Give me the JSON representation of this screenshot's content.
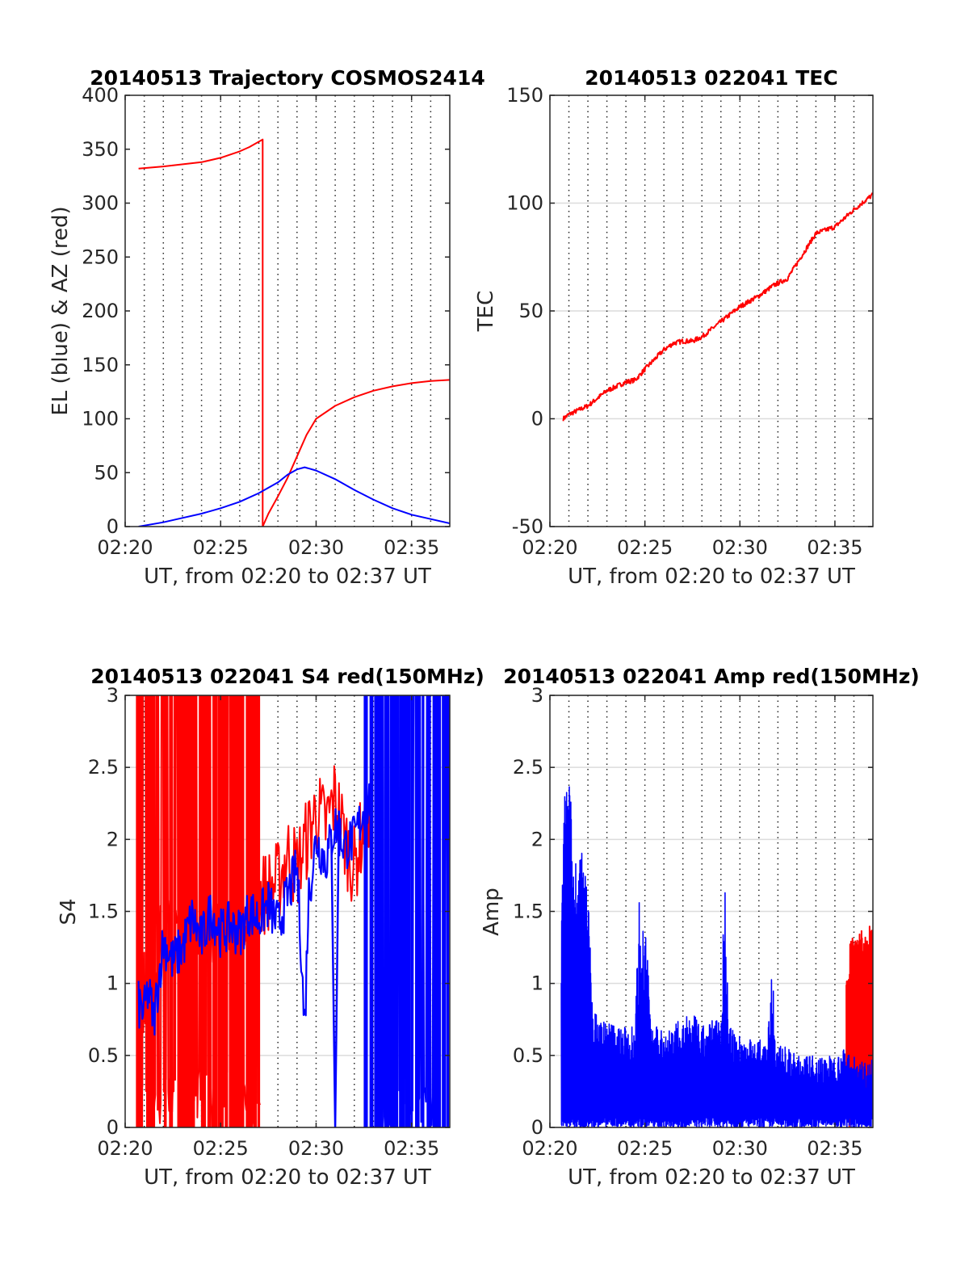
{
  "figure": {
    "x_ticks_minutes": [
      0,
      5,
      10,
      15
    ],
    "x_tick_labels": [
      "02:20",
      "02:25",
      "02:30",
      "02:35"
    ],
    "x_grid_minutes": [
      1,
      2,
      3,
      4,
      5,
      6,
      7,
      8,
      9,
      10,
      11,
      12,
      13,
      14,
      15,
      16
    ],
    "xlim_minutes": [
      0,
      17
    ],
    "colors": {
      "red": "#ff0000",
      "blue": "#0000ff",
      "grid": "#262626",
      "axes": "#262626"
    }
  },
  "chart_data": [
    {
      "id": "traj",
      "type": "line",
      "title": "20140513 Trajectory COSMOS2414",
      "xlabel": "UT, from 02:20 to 02:37 UT",
      "ylabel": "EL (blue) & AZ (red)",
      "ylim": [
        0,
        400
      ],
      "yticks": [
        0,
        50,
        100,
        150,
        200,
        250,
        300,
        350,
        400
      ],
      "ytick_labels": [
        "0",
        "50",
        "100",
        "150",
        "200",
        "250",
        "300",
        "350",
        "400"
      ],
      "grid": {
        "x": "dotted",
        "y": "none"
      },
      "series": [
        {
          "color": "#ff0000",
          "x": [
            0.7,
            2,
            4,
            5,
            6,
            6.5,
            7.2,
            7.2,
            7.5,
            8,
            8.5,
            9,
            9.5,
            10,
            11,
            12,
            13,
            14,
            15,
            16,
            17
          ],
          "y": [
            332,
            334,
            338,
            342,
            348,
            352,
            359,
            0,
            12,
            28,
            45,
            65,
            85,
            100,
            112,
            120,
            126,
            130,
            133,
            135,
            136
          ]
        },
        {
          "color": "#0000ff",
          "x": [
            0.7,
            2,
            3,
            4,
            5,
            6,
            7,
            8,
            8.5,
            9,
            9.4,
            10,
            11,
            12,
            13,
            14,
            15,
            16,
            17
          ],
          "y": [
            0,
            4,
            8,
            12,
            17,
            23,
            31,
            41,
            48,
            53,
            55,
            52,
            44,
            34,
            25,
            17,
            11,
            7,
            3
          ]
        }
      ]
    },
    {
      "id": "tec",
      "type": "line",
      "title": "20140513 022041 TEC",
      "xlabel": "UT, from 02:20 to 02:37 UT",
      "ylabel": "TEC",
      "ylim": [
        -50,
        150
      ],
      "yticks": [
        -50,
        0,
        50,
        100,
        150
      ],
      "ytick_labels": [
        "-50",
        "0",
        "50",
        "100",
        "150"
      ],
      "grid": {
        "x": "dotted",
        "y": "solid"
      },
      "series": [
        {
          "color": "#ff0000",
          "x": [
            0.7,
            1,
            2,
            3,
            4,
            4.5,
            5,
            6,
            6.5,
            7,
            7.5,
            8,
            9,
            10,
            11,
            11.8,
            12.5,
            13,
            14,
            15,
            16,
            17
          ],
          "y": [
            0,
            2,
            6,
            13,
            17,
            18,
            23,
            32,
            35,
            36,
            36,
            38,
            45,
            52,
            57,
            62,
            65,
            72,
            86,
            89,
            97,
            104
          ]
        }
      ]
    },
    {
      "id": "s4",
      "type": "line",
      "title": "20140513 022041 S4 red(150MHz)",
      "xlabel": "UT, from 02:20 to 02:37 UT",
      "ylabel": "S4",
      "ylim": [
        0,
        3
      ],
      "yticks": [
        0,
        0.5,
        1,
        1.5,
        2,
        2.5,
        3
      ],
      "ytick_labels": [
        "0",
        "0.5",
        "1",
        "1.5",
        "2",
        "2.5",
        "3"
      ],
      "grid": {
        "x": "dotted",
        "y": "solid"
      },
      "red_spikes_x": [
        0.75,
        1.2,
        1.3,
        1.5,
        2.1,
        2.4,
        2.9,
        3.2,
        3.5,
        4.1,
        4.4,
        4.7,
        5.0,
        5.3,
        5.6,
        5.9,
        6.1,
        6.5,
        6.8,
        7.0
      ],
      "red_trend": {
        "color": "#ff0000",
        "x": [
          0.7,
          1,
          1.5,
          2,
          3,
          4,
          5,
          6,
          7,
          8,
          8.5,
          9,
          9.5,
          10,
          10.5,
          11,
          11.5,
          12,
          12.5,
          13
        ],
        "y": [
          0.9,
          0.95,
          1.15,
          1.3,
          1.35,
          1.4,
          1.45,
          1.55,
          1.6,
          1.7,
          1.9,
          1.8,
          2.0,
          2.2,
          2.1,
          2.3,
          2.0,
          1.8,
          2.1,
          1.9
        ]
      },
      "blue_spikes_x": [
        12.6,
        12.9,
        13.2,
        13.4,
        13.7,
        14.0,
        14.2,
        14.5,
        14.8,
        15.0,
        15.3,
        15.6,
        15.9,
        16.2,
        16.4,
        16.7,
        16.9
      ],
      "blue_trend": {
        "color": "#0000ff",
        "x": [
          0.7,
          1,
          1.2,
          1.5,
          2,
          2.5,
          3,
          3.5,
          4,
          4.5,
          5,
          5.5,
          6,
          6.5,
          7,
          7.5,
          8,
          8.5,
          9,
          9.2,
          9.4,
          9.6,
          10,
          10.5,
          11,
          11.5,
          12,
          12.5,
          13
        ],
        "y": [
          0.85,
          0.8,
          0.95,
          0.75,
          1.3,
          1.15,
          1.25,
          1.45,
          1.3,
          1.5,
          1.35,
          1.4,
          1.35,
          1.5,
          1.45,
          1.55,
          1.4,
          1.6,
          1.8,
          1.3,
          0.65,
          1.6,
          2.0,
          1.85,
          2.1,
          1.95,
          2.0,
          2.2,
          2.3
        ]
      },
      "blue_drop": {
        "x": [
          10.8,
          11.0,
          11.2
        ],
        "y": [
          2.0,
          0.0,
          2.2
        ]
      }
    },
    {
      "id": "amp",
      "type": "line",
      "title": "20140513 022041 Amp red(150MHz)",
      "xlabel": "UT, from 02:20 to 02:37 UT",
      "ylabel": "Amp",
      "ylim": [
        0,
        3
      ],
      "yticks": [
        0,
        0.5,
        1,
        1.5,
        2,
        2.5,
        3
      ],
      "ytick_labels": [
        "0",
        "0.5",
        "1",
        "1.5",
        "2",
        "2.5",
        "3"
      ],
      "grid": {
        "x": "dotted",
        "y": "solid"
      },
      "blue_envelope": {
        "color": "#0000ff",
        "x": [
          0.6,
          0.8,
          1.0,
          1.2,
          1.4,
          1.6,
          1.8,
          2.0,
          2.2,
          2.4,
          3,
          4,
          4.5,
          4.7,
          4.9,
          5.1,
          5.3,
          6,
          7,
          7.5,
          8,
          8.5,
          9,
          9.2,
          9.4,
          10,
          11,
          11.5,
          11.7,
          11.9,
          12.5,
          13,
          14,
          15,
          15.5,
          16,
          16.5,
          17
        ],
        "y": [
          1.6,
          2.45,
          2.5,
          2.1,
          1.9,
          2.0,
          1.8,
          1.9,
          0.9,
          0.8,
          0.75,
          0.7,
          0.8,
          1.6,
          1.45,
          1.4,
          0.7,
          0.7,
          0.75,
          0.8,
          0.7,
          0.75,
          0.8,
          1.8,
          0.7,
          0.65,
          0.6,
          0.7,
          1.2,
          0.6,
          0.55,
          0.5,
          0.5,
          0.5,
          0.55,
          0.5,
          0.45,
          0.5
        ]
      },
      "red_block": {
        "color": "#ff0000",
        "x": [
          15.6,
          17.0
        ],
        "y_top": [
          1.1,
          1.35,
          1.3,
          1.4,
          1.35,
          1.3,
          1.4,
          1.35
        ],
        "y_bottom": 0.5
      }
    }
  ]
}
